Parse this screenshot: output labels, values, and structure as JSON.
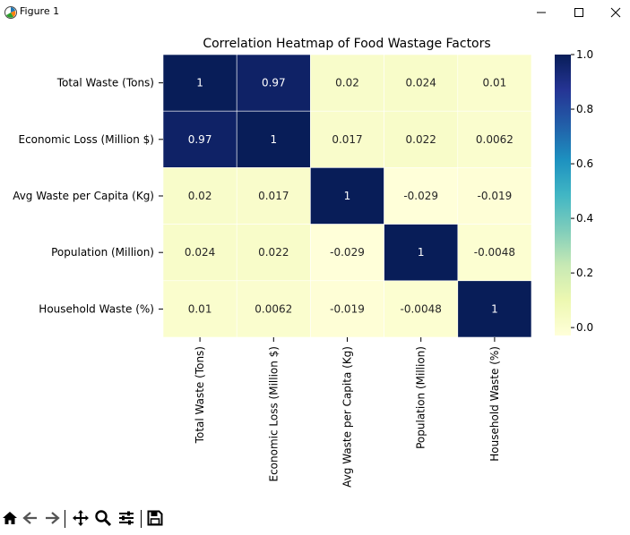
{
  "window": {
    "title": "Figure 1",
    "icons": [
      "app-icon",
      "minimize-icon",
      "maximize-icon",
      "close-icon"
    ]
  },
  "toolbar": {
    "icons": [
      "home-icon",
      "back-icon",
      "forward-icon",
      "pan-icon",
      "zoom-icon",
      "configure-subplots-icon",
      "save-icon"
    ]
  },
  "chart_data": {
    "type": "heatmap",
    "title": "Correlation Heatmap of Food Wastage Factors",
    "row_labels": [
      "Total Waste (Tons)",
      "Economic Loss (Million $)",
      "Avg Waste per Capita (Kg)",
      "Population (Million)",
      "Household Waste (%)"
    ],
    "col_labels": [
      "Total Waste (Tons)",
      "Economic Loss (Million $)",
      "Avg Waste per Capita (Kg)",
      "Population (Million)",
      "Household Waste (%)"
    ],
    "values": [
      [
        1,
        0.97,
        0.02,
        0.024,
        0.01
      ],
      [
        0.97,
        1,
        0.017,
        0.022,
        0.0062
      ],
      [
        0.02,
        0.017,
        1,
        -0.029,
        -0.019
      ],
      [
        0.024,
        0.022,
        -0.029,
        1,
        -0.0048
      ],
      [
        0.01,
        0.0062,
        -0.019,
        -0.0048,
        1
      ]
    ],
    "annotations": [
      [
        "1",
        "0.97",
        "0.02",
        "0.024",
        "0.01"
      ],
      [
        "0.97",
        "1",
        "0.017",
        "0.022",
        "0.0062"
      ],
      [
        "0.02",
        "0.017",
        "1",
        "-0.029",
        "-0.019"
      ],
      [
        "0.024",
        "0.022",
        "-0.029",
        "1",
        "-0.0048"
      ],
      [
        "0.01",
        "0.0062",
        "-0.019",
        "-0.0048",
        "1"
      ]
    ],
    "colormap": "YlGnBu",
    "vmin": -0.029,
    "vmax": 1,
    "colorbar_ticks": [
      0.0,
      0.2,
      0.4,
      0.6,
      0.8,
      1.0
    ],
    "colorbar_tick_labels": [
      "0.0",
      "0.2",
      "0.4",
      "0.6",
      "0.8",
      "1.0"
    ],
    "colorbar_stops": [
      "#ffffd9",
      "#edf8b1",
      "#c7e9b4",
      "#7fcdbb",
      "#41b6c4",
      "#1d91c0",
      "#225ea8",
      "#253494",
      "#081d58"
    ],
    "grid_line_color": "#ffffff"
  }
}
